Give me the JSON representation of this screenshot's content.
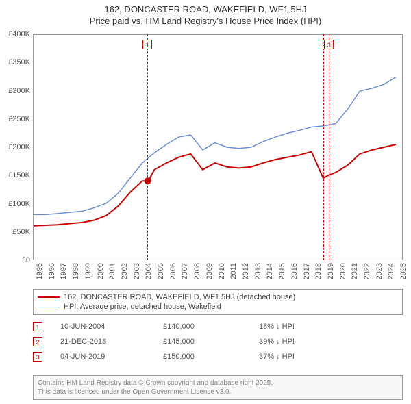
{
  "title_line1": "162, DONCASTER ROAD, WAKEFIELD, WF1 5HJ",
  "title_line2": "Price paid vs. HM Land Registry's House Price Index (HPI)",
  "chart": {
    "type": "line",
    "x_min": 1995,
    "x_max": 2025.5,
    "y_min": 0,
    "y_max": 400000,
    "y_ticks": [
      0,
      50000,
      100000,
      150000,
      200000,
      250000,
      300000,
      350000,
      400000
    ],
    "y_tick_labels": [
      "£0",
      "£50K",
      "£100K",
      "£150K",
      "£200K",
      "£250K",
      "£300K",
      "£350K",
      "£400K"
    ],
    "x_ticks": [
      1995,
      1996,
      1997,
      1998,
      1999,
      2000,
      2001,
      2002,
      2003,
      2004,
      2005,
      2006,
      2007,
      2008,
      2009,
      2010,
      2011,
      2012,
      2013,
      2014,
      2015,
      2016,
      2017,
      2018,
      2019,
      2020,
      2021,
      2022,
      2023,
      2024,
      2025
    ],
    "background_color": "#ffffff",
    "grid_color": "#eeeeee",
    "axis_color": "#999999",
    "series": [
      {
        "name": "price_paid",
        "label": "162, DONCASTER ROAD, WAKEFIELD, WF1 5HJ (detached house)",
        "color": "#cc0000",
        "line_width": 2,
        "data": [
          [
            1995,
            60000
          ],
          [
            1996,
            61000
          ],
          [
            1997,
            62000
          ],
          [
            1998,
            64000
          ],
          [
            1999,
            66000
          ],
          [
            2000,
            70000
          ],
          [
            2001,
            78000
          ],
          [
            2002,
            95000
          ],
          [
            2003,
            120000
          ],
          [
            2004,
            140000
          ],
          [
            2004.5,
            140000
          ],
          [
            2005,
            160000
          ],
          [
            2006,
            172000
          ],
          [
            2007,
            182000
          ],
          [
            2008,
            188000
          ],
          [
            2009,
            160000
          ],
          [
            2010,
            172000
          ],
          [
            2011,
            165000
          ],
          [
            2012,
            163000
          ],
          [
            2013,
            165000
          ],
          [
            2014,
            172000
          ],
          [
            2015,
            178000
          ],
          [
            2016,
            182000
          ],
          [
            2017,
            186000
          ],
          [
            2018,
            192000
          ],
          [
            2018.97,
            145000
          ],
          [
            2019.4,
            150000
          ],
          [
            2020,
            155000
          ],
          [
            2021,
            168000
          ],
          [
            2022,
            188000
          ],
          [
            2023,
            195000
          ],
          [
            2024,
            200000
          ],
          [
            2025,
            205000
          ]
        ],
        "marker_point": [
          2004.45,
          140000
        ],
        "marker_color": "#cc0000",
        "marker_size": 5
      },
      {
        "name": "hpi",
        "label": "HPI: Average price, detached house, Wakefield",
        "color": "#6a8fd8",
        "line_width": 1.5,
        "data": [
          [
            1995,
            80000
          ],
          [
            1996,
            80000
          ],
          [
            1997,
            82000
          ],
          [
            1998,
            84000
          ],
          [
            1999,
            86000
          ],
          [
            2000,
            92000
          ],
          [
            2001,
            100000
          ],
          [
            2002,
            118000
          ],
          [
            2003,
            145000
          ],
          [
            2004,
            172000
          ],
          [
            2005,
            190000
          ],
          [
            2006,
            205000
          ],
          [
            2007,
            218000
          ],
          [
            2008,
            222000
          ],
          [
            2009,
            195000
          ],
          [
            2010,
            208000
          ],
          [
            2011,
            200000
          ],
          [
            2012,
            198000
          ],
          [
            2013,
            200000
          ],
          [
            2014,
            210000
          ],
          [
            2015,
            218000
          ],
          [
            2016,
            225000
          ],
          [
            2017,
            230000
          ],
          [
            2018,
            236000
          ],
          [
            2019,
            238000
          ],
          [
            2020,
            242000
          ],
          [
            2021,
            268000
          ],
          [
            2022,
            300000
          ],
          [
            2023,
            305000
          ],
          [
            2024,
            312000
          ],
          [
            2025,
            325000
          ]
        ]
      }
    ],
    "event_markers": [
      {
        "n": "1",
        "x": 2004.45,
        "label_y_offset": -12
      },
      {
        "n": "2",
        "x": 2018.97,
        "label_y_offset": -12
      },
      {
        "n": "3",
        "x": 2019.42,
        "label_y_offset": -12
      }
    ]
  },
  "legend": {
    "items": [
      {
        "color": "#cc0000",
        "width": 2,
        "label": "162, DONCASTER ROAD, WAKEFIELD, WF1 5HJ (detached house)"
      },
      {
        "color": "#6a8fd8",
        "width": 1.5,
        "label": "HPI: Average price, detached house, Wakefield"
      }
    ]
  },
  "sales": [
    {
      "n": "1",
      "date": "10-JUN-2004",
      "price": "£140,000",
      "delta": "18% ↓ HPI"
    },
    {
      "n": "2",
      "date": "21-DEC-2018",
      "price": "£145,000",
      "delta": "39% ↓ HPI"
    },
    {
      "n": "3",
      "date": "04-JUN-2019",
      "price": "£150,000",
      "delta": "37% ↓ HPI"
    }
  ],
  "footer_line1": "Contains HM Land Registry data © Crown copyright and database right 2025.",
  "footer_line2": "This data is licensed under the Open Government Licence v3.0."
}
